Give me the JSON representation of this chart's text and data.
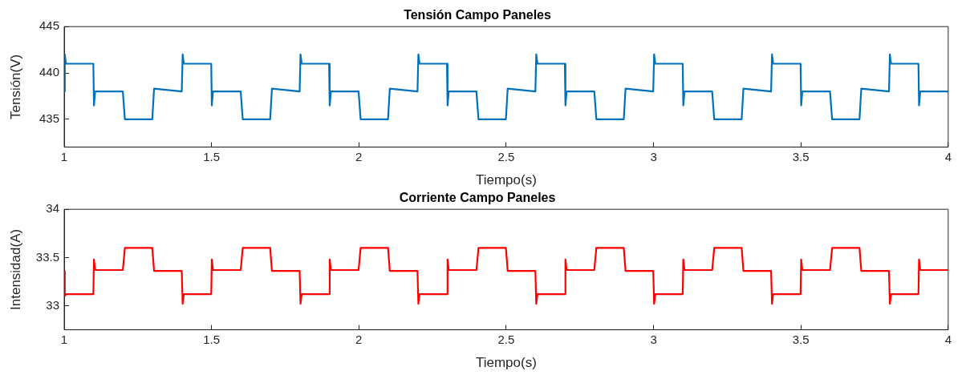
{
  "chart_data": [
    {
      "type": "line",
      "title": "Tensión Campo Paneles",
      "xlabel": "Tiempo(s)",
      "ylabel": "Tensión(V)",
      "xlim": [
        1,
        4
      ],
      "ylim": [
        432,
        445
      ],
      "xticks": [
        1,
        1.5,
        2,
        2.5,
        3,
        3.5,
        4
      ],
      "yticks": [
        435,
        440,
        445
      ],
      "grid": false,
      "x": [
        1,
        1.002,
        1.006,
        1.099,
        1.101,
        1.105,
        1.199,
        1.206,
        1.299,
        1.305,
        1.399,
        1.4,
        1.402,
        1.406,
        1.499,
        1.501,
        1.505,
        1.599,
        1.606,
        1.699,
        1.705,
        1.799,
        1.8,
        1.802,
        1.806,
        1.899,
        1.901,
        1.905,
        1.999,
        2.006,
        2.099,
        2.105,
        2.199,
        2.2,
        2.202,
        2.206,
        2.299,
        2.301,
        2.305,
        2.399,
        2.406,
        2.499,
        2.505,
        2.599,
        2.6,
        2.602,
        2.606,
        2.699,
        2.701,
        2.705,
        2.799,
        2.806,
        2.899,
        2.905,
        2.999,
        3,
        3.002,
        3.006,
        3.099,
        3.101,
        3.105,
        3.199,
        3.206,
        3.299,
        3.305,
        3.399,
        3.4,
        3.402,
        3.406,
        3.499,
        3.501,
        3.505,
        3.599,
        3.606,
        3.699,
        3.705,
        3.799,
        3.8,
        3.802,
        3.806,
        3.899,
        3.901,
        3.905,
        4
      ],
      "series": [
        {
          "color": "#0072bd",
          "values": [
            438,
            442,
            441,
            441,
            436.5,
            438,
            438,
            435,
            435,
            438.3,
            438,
            438,
            442,
            441,
            441,
            436.5,
            438,
            438,
            435,
            435,
            438.3,
            438,
            438,
            442,
            441,
            441,
            436.5,
            438,
            438,
            435,
            435,
            438.3,
            438,
            438,
            442,
            441,
            441,
            436.5,
            438,
            438,
            435,
            435,
            438.3,
            438,
            438,
            442,
            441,
            441,
            436.5,
            438,
            438,
            435,
            435,
            438.3,
            438,
            438,
            442,
            441,
            441,
            436.5,
            438,
            438,
            435,
            435,
            438.3,
            438,
            438,
            442,
            441,
            441,
            436.5,
            438,
            438,
            435,
            435,
            438.3,
            438,
            438,
            442,
            441,
            441,
            436.5,
            438,
            438
          ]
        }
      ]
    },
    {
      "type": "line",
      "title": "Corriente Campo Paneles",
      "xlabel": "Tiempo(s)",
      "ylabel": "Intensidad(A)",
      "xlim": [
        1,
        4
      ],
      "ylim": [
        32.75,
        34
      ],
      "xticks": [
        1,
        1.5,
        2,
        2.5,
        3,
        3.5,
        4
      ],
      "yticks": [
        33,
        33.5,
        34
      ],
      "grid": false,
      "x": [
        1,
        1.002,
        1.006,
        1.099,
        1.101,
        1.105,
        1.199,
        1.206,
        1.299,
        1.305,
        1.399,
        1.4,
        1.402,
        1.406,
        1.499,
        1.501,
        1.505,
        1.599,
        1.606,
        1.699,
        1.705,
        1.799,
        1.8,
        1.802,
        1.806,
        1.899,
        1.901,
        1.905,
        1.999,
        2.006,
        2.099,
        2.105,
        2.199,
        2.2,
        2.202,
        2.206,
        2.299,
        2.301,
        2.305,
        2.399,
        2.406,
        2.499,
        2.505,
        2.599,
        2.6,
        2.602,
        2.606,
        2.699,
        2.701,
        2.705,
        2.799,
        2.806,
        2.899,
        2.905,
        2.999,
        3,
        3.002,
        3.006,
        3.099,
        3.101,
        3.105,
        3.199,
        3.206,
        3.299,
        3.305,
        3.399,
        3.4,
        3.402,
        3.406,
        3.499,
        3.501,
        3.505,
        3.599,
        3.606,
        3.699,
        3.705,
        3.799,
        3.8,
        3.802,
        3.806,
        3.899,
        3.901,
        3.905,
        4
      ],
      "series": [
        {
          "color": "#ff0000",
          "values": [
            33.36,
            33.1,
            33.12,
            33.12,
            33.48,
            33.37,
            33.37,
            33.6,
            33.6,
            33.36,
            33.36,
            33.36,
            33.02,
            33.12,
            33.12,
            33.48,
            33.37,
            33.37,
            33.6,
            33.6,
            33.36,
            33.36,
            33.36,
            33.02,
            33.12,
            33.12,
            33.48,
            33.37,
            33.37,
            33.6,
            33.6,
            33.36,
            33.36,
            33.36,
            33.02,
            33.12,
            33.12,
            33.48,
            33.37,
            33.37,
            33.6,
            33.6,
            33.36,
            33.36,
            33.36,
            33.02,
            33.12,
            33.12,
            33.48,
            33.37,
            33.37,
            33.6,
            33.6,
            33.36,
            33.36,
            33.36,
            33.02,
            33.12,
            33.12,
            33.48,
            33.37,
            33.37,
            33.6,
            33.6,
            33.36,
            33.36,
            33.36,
            33.02,
            33.12,
            33.12,
            33.48,
            33.37,
            33.37,
            33.6,
            33.6,
            33.36,
            33.36,
            33.36,
            33.02,
            33.12,
            33.12,
            33.48,
            33.37,
            33.37
          ]
        }
      ]
    }
  ]
}
